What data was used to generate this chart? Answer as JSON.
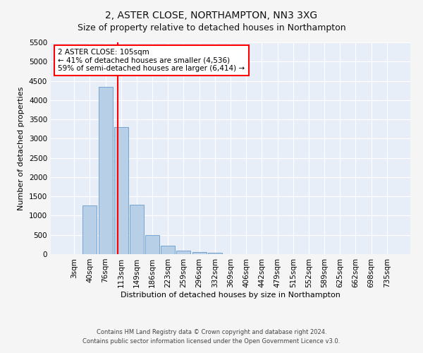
{
  "title": "2, ASTER CLOSE, NORTHAMPTON, NN3 3XG",
  "subtitle": "Size of property relative to detached houses in Northampton",
  "xlabel": "Distribution of detached houses by size in Northampton",
  "ylabel": "Number of detached properties",
  "footnote1": "Contains HM Land Registry data © Crown copyright and database right 2024.",
  "footnote2": "Contains public sector information licensed under the Open Government Licence v3.0.",
  "annotation_line1": "2 ASTER CLOSE: 105sqm",
  "annotation_line2": "← 41% of detached houses are smaller (4,536)",
  "annotation_line3": "59% of semi-detached houses are larger (6,414) →",
  "bar_labels": [
    "3sqm",
    "40sqm",
    "76sqm",
    "113sqm",
    "149sqm",
    "186sqm",
    "223sqm",
    "259sqm",
    "296sqm",
    "332sqm",
    "369sqm",
    "406sqm",
    "442sqm",
    "479sqm",
    "515sqm",
    "552sqm",
    "589sqm",
    "625sqm",
    "662sqm",
    "698sqm",
    "735sqm"
  ],
  "bar_values": [
    0,
    1270,
    4350,
    3300,
    1280,
    490,
    215,
    90,
    60,
    40,
    0,
    0,
    0,
    0,
    0,
    0,
    0,
    0,
    0,
    0,
    0
  ],
  "bar_color": "#b8cfe8",
  "bar_edge_color": "#6699cc",
  "ylim": [
    0,
    5500
  ],
  "yticks": [
    0,
    500,
    1000,
    1500,
    2000,
    2500,
    3000,
    3500,
    4000,
    4500,
    5000,
    5500
  ],
  "background_color": "#e8eef8",
  "grid_color": "#ffffff",
  "fig_bg_color": "#f5f5f5",
  "title_fontsize": 10,
  "subtitle_fontsize": 9,
  "axis_label_fontsize": 8,
  "tick_fontsize": 7.5,
  "annot_fontsize": 7.5,
  "footnote_fontsize": 6
}
